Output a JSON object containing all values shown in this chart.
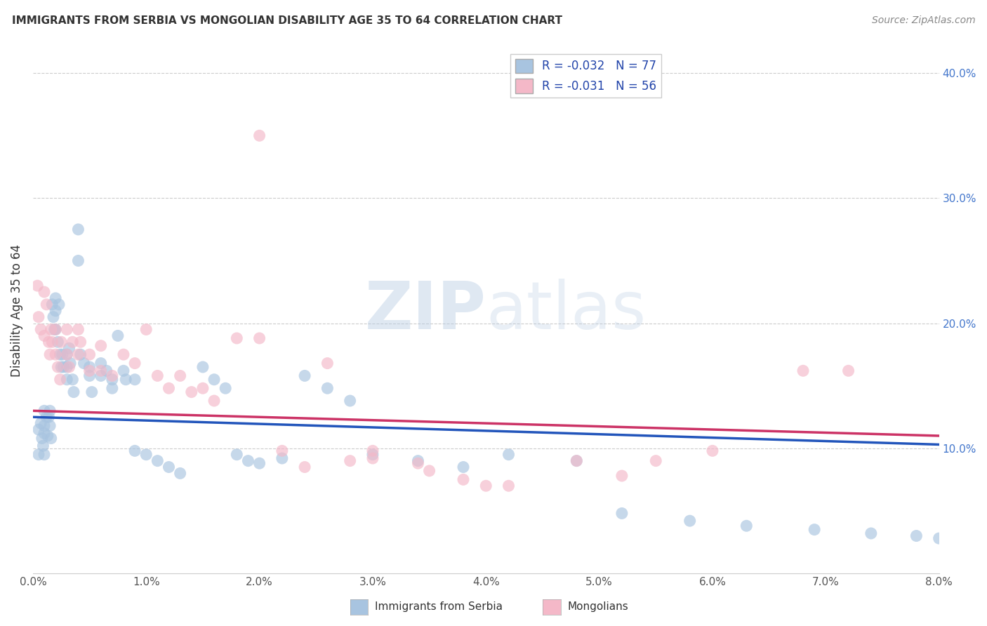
{
  "title": "IMMIGRANTS FROM SERBIA VS MONGOLIAN DISABILITY AGE 35 TO 64 CORRELATION CHART",
  "source": "Source: ZipAtlas.com",
  "ylabel": "Disability Age 35 to 64",
  "ylabel_right_ticks": [
    "40.0%",
    "30.0%",
    "20.0%",
    "10.0%"
  ],
  "ylabel_right_vals": [
    0.4,
    0.3,
    0.2,
    0.1
  ],
  "xmin": 0.0,
  "xmax": 0.08,
  "ymin": 0.0,
  "ymax": 0.42,
  "watermark_zip": "ZIP",
  "watermark_atlas": "atlas",
  "serbia_color": "#a8c4e0",
  "mongolian_color": "#f4b8c8",
  "serbia_line_color": "#2255bb",
  "mongolian_line_color": "#cc3366",
  "serbia_r": -0.032,
  "serbia_n": 77,
  "mongolian_r": -0.031,
  "mongolian_n": 56,
  "serbia_scatter_x": [
    0.0005,
    0.0005,
    0.0007,
    0.0008,
    0.0009,
    0.001,
    0.001,
    0.001,
    0.001,
    0.0012,
    0.0013,
    0.0014,
    0.0015,
    0.0015,
    0.0016,
    0.0017,
    0.0018,
    0.0019,
    0.002,
    0.002,
    0.002,
    0.0022,
    0.0023,
    0.0024,
    0.0025,
    0.0026,
    0.0027,
    0.003,
    0.003,
    0.003,
    0.0032,
    0.0033,
    0.0035,
    0.0036,
    0.004,
    0.004,
    0.0042,
    0.0045,
    0.005,
    0.005,
    0.0052,
    0.006,
    0.006,
    0.0065,
    0.007,
    0.007,
    0.0075,
    0.008,
    0.0082,
    0.009,
    0.009,
    0.01,
    0.011,
    0.012,
    0.013,
    0.015,
    0.016,
    0.017,
    0.018,
    0.019,
    0.02,
    0.022,
    0.024,
    0.026,
    0.028,
    0.03,
    0.034,
    0.038,
    0.042,
    0.048,
    0.052,
    0.058,
    0.063,
    0.069,
    0.074,
    0.078,
    0.08
  ],
  "serbia_scatter_y": [
    0.115,
    0.095,
    0.12,
    0.108,
    0.102,
    0.13,
    0.118,
    0.112,
    0.095,
    0.125,
    0.11,
    0.125,
    0.13,
    0.118,
    0.108,
    0.215,
    0.205,
    0.195,
    0.22,
    0.21,
    0.195,
    0.185,
    0.215,
    0.175,
    0.165,
    0.175,
    0.165,
    0.175,
    0.165,
    0.155,
    0.18,
    0.168,
    0.155,
    0.145,
    0.275,
    0.25,
    0.175,
    0.168,
    0.165,
    0.158,
    0.145,
    0.168,
    0.158,
    0.162,
    0.155,
    0.148,
    0.19,
    0.162,
    0.155,
    0.155,
    0.098,
    0.095,
    0.09,
    0.085,
    0.08,
    0.165,
    0.155,
    0.148,
    0.095,
    0.09,
    0.088,
    0.092,
    0.158,
    0.148,
    0.138,
    0.095,
    0.09,
    0.085,
    0.095,
    0.09,
    0.048,
    0.042,
    0.038,
    0.035,
    0.032,
    0.03,
    0.028
  ],
  "mongolian_scatter_x": [
    0.0004,
    0.0005,
    0.0007,
    0.001,
    0.001,
    0.0012,
    0.0014,
    0.0015,
    0.0016,
    0.0017,
    0.002,
    0.002,
    0.0022,
    0.0024,
    0.0025,
    0.003,
    0.003,
    0.0032,
    0.0035,
    0.004,
    0.004,
    0.0042,
    0.005,
    0.005,
    0.006,
    0.006,
    0.007,
    0.008,
    0.009,
    0.01,
    0.011,
    0.012,
    0.013,
    0.014,
    0.015,
    0.016,
    0.018,
    0.02,
    0.022,
    0.024,
    0.026,
    0.028,
    0.03,
    0.034,
    0.038,
    0.042,
    0.048,
    0.052,
    0.06,
    0.068,
    0.02,
    0.03,
    0.035,
    0.04,
    0.055,
    0.072
  ],
  "mongolian_scatter_y": [
    0.23,
    0.205,
    0.195,
    0.225,
    0.19,
    0.215,
    0.185,
    0.175,
    0.195,
    0.185,
    0.195,
    0.175,
    0.165,
    0.155,
    0.185,
    0.195,
    0.175,
    0.165,
    0.185,
    0.195,
    0.175,
    0.185,
    0.175,
    0.162,
    0.182,
    0.162,
    0.158,
    0.175,
    0.168,
    0.195,
    0.158,
    0.148,
    0.158,
    0.145,
    0.148,
    0.138,
    0.188,
    0.35,
    0.098,
    0.085,
    0.168,
    0.09,
    0.098,
    0.088,
    0.075,
    0.07,
    0.09,
    0.078,
    0.098,
    0.162,
    0.188,
    0.092,
    0.082,
    0.07,
    0.09,
    0.162
  ]
}
